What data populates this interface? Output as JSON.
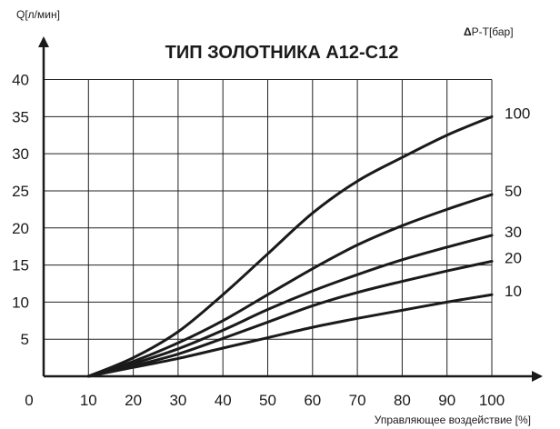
{
  "chart_data": {
    "type": "line",
    "title": "ТИП ЗОЛОТНИКА A12-C12",
    "ylabel": "Q[л/мин]",
    "xlabel": "Управляющее воздействие [%]",
    "legend_title_bold": "Δ",
    "legend_title": "P-T[бар]",
    "origin_label": "0",
    "x_ticks": [
      "10",
      "20",
      "30",
      "40",
      "50",
      "60",
      "70",
      "80",
      "90",
      "100"
    ],
    "y_ticks": [
      "5",
      "10",
      "15",
      "20",
      "25",
      "30",
      "35",
      "40"
    ],
    "xlim": [
      0,
      100
    ],
    "ylim": [
      0,
      40
    ],
    "grid": true,
    "x": [
      10,
      20,
      30,
      40,
      50,
      60,
      70,
      80,
      90,
      100
    ],
    "series": [
      {
        "name": "100",
        "values": [
          0,
          2.5,
          6,
          11,
          16.5,
          22,
          26.3,
          29.5,
          32.5,
          35
        ]
      },
      {
        "name": "50",
        "values": [
          0,
          2,
          4.5,
          7.5,
          11,
          14.5,
          17.7,
          20.3,
          22.5,
          24.5
        ]
      },
      {
        "name": "30",
        "values": [
          0,
          1.7,
          3.7,
          6.2,
          9,
          11.5,
          13.7,
          15.7,
          17.4,
          19
        ]
      },
      {
        "name": "20",
        "values": [
          0,
          1.4,
          3,
          5.1,
          7.3,
          9.5,
          11.3,
          12.8,
          14.2,
          15.5
        ]
      },
      {
        "name": "10",
        "values": [
          0,
          1.2,
          2.4,
          3.8,
          5.2,
          6.6,
          7.8,
          8.9,
          10,
          11
        ]
      }
    ]
  }
}
